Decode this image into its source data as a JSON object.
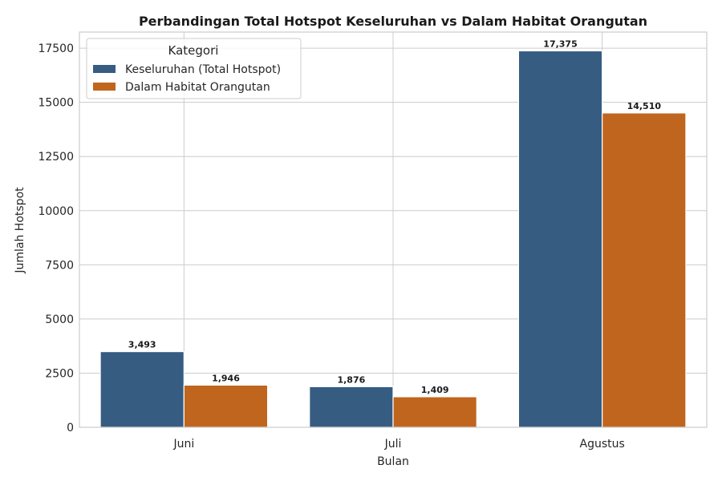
{
  "chart_data": {
    "type": "bar",
    "title": "Perbandingan Total Hotspot Keseluruhan vs Dalam Habitat Orangutan",
    "xlabel": "Bulan",
    "ylabel": "Jumlah Hotspot",
    "categories": [
      "Juni",
      "Juli",
      "Agustus"
    ],
    "series": [
      {
        "name": "Keseluruhan (Total Hotspot)",
        "values": [
          3493,
          1876,
          17375
        ],
        "labels": [
          "3,493",
          "1,876",
          "17,375"
        ],
        "color": "#365c82"
      },
      {
        "name": "Dalam Habitat Orangutan",
        "values": [
          1946,
          1409,
          14510
        ],
        "labels": [
          "1,946",
          "1,409",
          "14,510"
        ],
        "color": "#c0651e"
      }
    ],
    "ylim": [
      0,
      18243
    ],
    "yticks": [
      0,
      2500,
      5000,
      7500,
      10000,
      12500,
      15000,
      17500
    ],
    "grid": true,
    "legend": {
      "title": "Kategori",
      "placement": "top-left"
    }
  }
}
